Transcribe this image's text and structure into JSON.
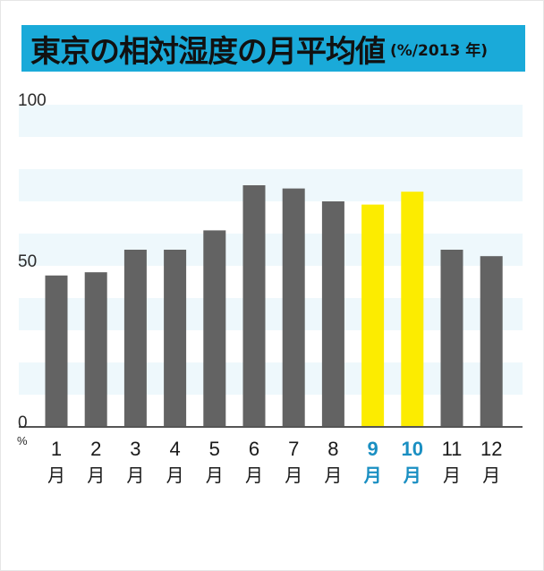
{
  "title": "東京の相対湿度の月平均値",
  "title_unit": "(%/2013 年)",
  "colors": {
    "title_bg": "#1aaad9",
    "bar": "#636363",
    "bar_highlight": "#fcec00",
    "highlight_text": "#1a8fc2",
    "band": "#eef8fc"
  },
  "chart_data": {
    "type": "bar",
    "title": "東京の相対湿度の月平均値",
    "categories": [
      "1月",
      "2月",
      "3月",
      "4月",
      "5月",
      "6月",
      "7月",
      "8月",
      "9月",
      "10月",
      "11月",
      "12月"
    ],
    "x_numbers": [
      "1",
      "2",
      "3",
      "4",
      "5",
      "6",
      "7",
      "8",
      "9",
      "10",
      "11",
      "12"
    ],
    "x_month": "月",
    "values": [
      47,
      48,
      55,
      55,
      61,
      75,
      74,
      70,
      69,
      73,
      55,
      53
    ],
    "highlight": [
      8,
      9
    ],
    "ylim": [
      0,
      100
    ],
    "yticks": [
      {
        "value": 0,
        "label": "0"
      },
      {
        "value": 50,
        "label": "50"
      },
      {
        "value": 100,
        "label": "100"
      }
    ],
    "yunit": "%",
    "background_bands": true,
    "grid": false
  }
}
